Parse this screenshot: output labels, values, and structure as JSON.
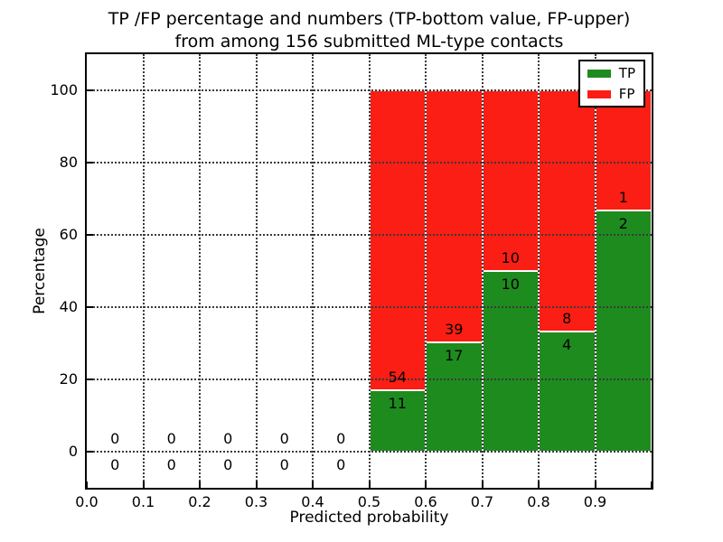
{
  "title": {
    "line1": "TP /FP percentage and numbers (TP-bottom value, FP-upper)",
    "line2": "from among 156 submitted ML-type contacts"
  },
  "axes": {
    "xlabel": "Predicted probability",
    "ylabel": "Percentage"
  },
  "legend": {
    "items": [
      {
        "label": "TP",
        "color": "#1e8b1e"
      },
      {
        "label": "FP",
        "color": "#fb1e14"
      }
    ]
  },
  "chart_data": {
    "type": "bar",
    "stacked": true,
    "normalized_to_percent": true,
    "title": "TP /FP percentage and numbers (TP-bottom value, FP-upper) from among 156 submitted ML-type contacts",
    "xlabel": "Predicted probability",
    "ylabel": "Percentage",
    "xlim": [
      0.0,
      1.0
    ],
    "ylim": [
      -10,
      110
    ],
    "grid": "dotted",
    "legend_position": "upper right",
    "bar_edge_color": "#ffffff",
    "x_tick_values": [
      0.0,
      0.1,
      0.2,
      0.3,
      0.4,
      0.5,
      0.6,
      0.7,
      0.8,
      0.9
    ],
    "x_tick_labels": [
      "0.0",
      "0.1",
      "0.2",
      "0.3",
      "0.4",
      "0.5",
      "0.6",
      "0.7",
      "0.8",
      "0.9"
    ],
    "y_tick_values": [
      0,
      20,
      40,
      60,
      80,
      100
    ],
    "y_tick_labels": [
      "0",
      "20",
      "40",
      "60",
      "80",
      "100"
    ],
    "bin_edges": [
      0.0,
      0.1,
      0.2,
      0.3,
      0.4,
      0.5,
      0.6,
      0.7,
      0.8,
      0.9,
      1.0
    ],
    "series": [
      {
        "name": "TP",
        "color": "#1e8b1e",
        "counts": [
          0,
          0,
          0,
          0,
          0,
          11,
          17,
          10,
          4,
          2
        ]
      },
      {
        "name": "FP",
        "color": "#fb1e14",
        "counts": [
          0,
          0,
          0,
          0,
          0,
          54,
          39,
          10,
          8,
          1
        ]
      }
    ],
    "tp_percent_per_bin": [
      0,
      0,
      0,
      0,
      0,
      16.92,
      30.36,
      50.0,
      33.33,
      66.67
    ],
    "total_contacts": 156
  }
}
